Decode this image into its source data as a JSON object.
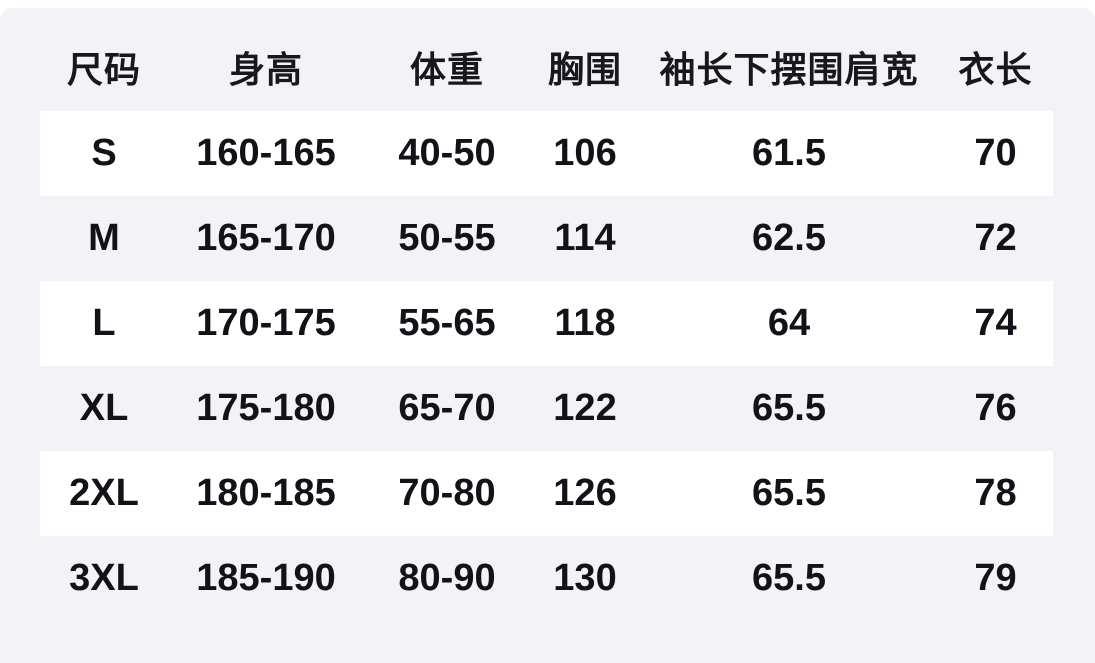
{
  "page": {
    "background_color": "#ffffff",
    "panel_background_color": "#f2f2f7",
    "row_highlight_color": "#ffffff",
    "text_color": "#111318"
  },
  "chart_data": {
    "type": "table",
    "columns": [
      "尺码",
      "身高",
      "体重",
      "胸围",
      "袖长下摆围肩宽",
      "衣长"
    ],
    "rows": [
      [
        "S",
        "160-165",
        "40-50",
        "106",
        "61.5",
        "70"
      ],
      [
        "M",
        "165-170",
        "50-55",
        "114",
        "62.5",
        "72"
      ],
      [
        "L",
        "170-175",
        "55-65",
        "118",
        "64",
        "74"
      ],
      [
        "XL",
        "175-180",
        "65-70",
        "122",
        "65.5",
        "76"
      ],
      [
        "2XL",
        "180-185",
        "70-80",
        "126",
        "65.5",
        "78"
      ],
      [
        "3XL",
        "185-190",
        "80-90",
        "130",
        "65.5",
        "79"
      ]
    ],
    "layout": {
      "striped_rows": "odd rows (S, L, 2XL) have white background",
      "grid": "off",
      "alignment": "center"
    }
  }
}
